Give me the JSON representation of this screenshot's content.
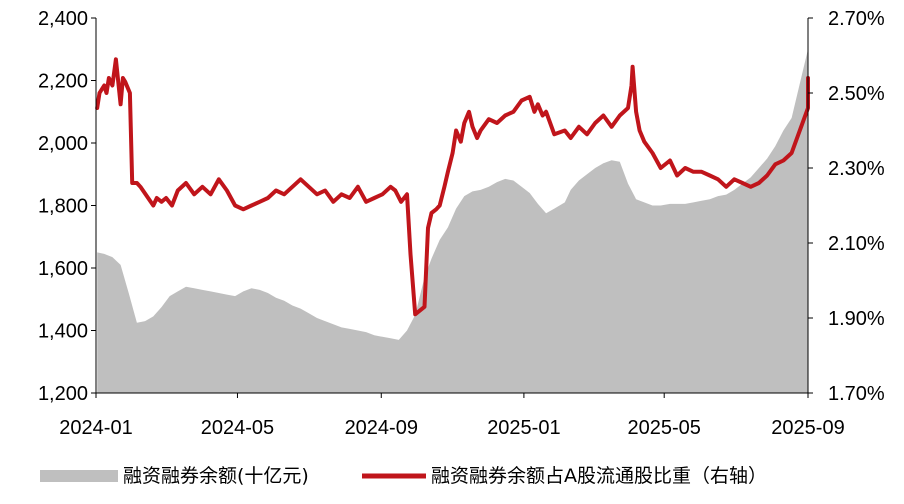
{
  "chart_data": {
    "type": "area",
    "title": "",
    "xlabel": "",
    "ylabel": "",
    "x_ticks": [
      "2024-01",
      "2024-05",
      "2024-09",
      "2025-01",
      "2025-05",
      "2025-09"
    ],
    "x_range": [
      "2024-01",
      "2025-09"
    ],
    "y_left": {
      "range": [
        1200,
        2400
      ],
      "ticks": [
        "1,200",
        "1,400",
        "1,600",
        "1,800",
        "2,000",
        "2,200",
        "2,400"
      ]
    },
    "y_right": {
      "range": [
        1.7,
        2.7
      ],
      "ticks": [
        "1.70%",
        "1.90%",
        "2.10%",
        "2.30%",
        "2.50%",
        "2.70%"
      ]
    },
    "grid": false,
    "legend_position": "bottom",
    "series": [
      {
        "name": "融资融券余额(十亿元)",
        "type": "area",
        "axis": "left",
        "color": "#bfbfbf",
        "dates": [
          "2024-01-02",
          "2024-01-08",
          "2024-01-15",
          "2024-01-22",
          "2024-01-29",
          "2024-02-05",
          "2024-02-12",
          "2024-02-19",
          "2024-02-26",
          "2024-03-04",
          "2024-03-11",
          "2024-03-18",
          "2024-03-25",
          "2024-04-01",
          "2024-04-08",
          "2024-04-15",
          "2024-04-22",
          "2024-04-29",
          "2024-05-06",
          "2024-05-13",
          "2024-05-20",
          "2024-05-27",
          "2024-06-03",
          "2024-06-10",
          "2024-06-17",
          "2024-06-24",
          "2024-07-01",
          "2024-07-08",
          "2024-07-15",
          "2024-07-22",
          "2024-07-29",
          "2024-08-05",
          "2024-08-12",
          "2024-08-19",
          "2024-08-26",
          "2024-09-02",
          "2024-09-09",
          "2024-09-16",
          "2024-09-23",
          "2024-09-30",
          "2024-10-08",
          "2024-10-14",
          "2024-10-21",
          "2024-10-28",
          "2024-11-04",
          "2024-11-11",
          "2024-11-18",
          "2024-11-25",
          "2024-12-02",
          "2024-12-09",
          "2024-12-16",
          "2024-12-23",
          "2024-12-30",
          "2025-01-06",
          "2025-01-13",
          "2025-01-20",
          "2025-01-27",
          "2025-02-05",
          "2025-02-10",
          "2025-02-17",
          "2025-02-24",
          "2025-03-03",
          "2025-03-10",
          "2025-03-17",
          "2025-03-24",
          "2025-03-31",
          "2025-04-07",
          "2025-04-14",
          "2025-04-21",
          "2025-04-28",
          "2025-05-06",
          "2025-05-12",
          "2025-05-19",
          "2025-05-26",
          "2025-06-02",
          "2025-06-09",
          "2025-06-16",
          "2025-06-23",
          "2025-06-30",
          "2025-07-07",
          "2025-07-14",
          "2025-07-21",
          "2025-07-28",
          "2025-08-04",
          "2025-08-11",
          "2025-08-18",
          "2025-08-25",
          "2025-09-01",
          "2025-09-08",
          "2025-09-15"
        ],
        "values": [
          1650,
          1645,
          1635,
          1610,
          1520,
          1425,
          1430,
          1445,
          1475,
          1510,
          1525,
          1540,
          1535,
          1530,
          1525,
          1520,
          1515,
          1510,
          1525,
          1535,
          1530,
          1520,
          1505,
          1495,
          1480,
          1470,
          1455,
          1440,
          1430,
          1420,
          1410,
          1405,
          1400,
          1395,
          1385,
          1380,
          1375,
          1370,
          1400,
          1450,
          1570,
          1630,
          1690,
          1730,
          1790,
          1830,
          1845,
          1850,
          1860,
          1875,
          1885,
          1880,
          1860,
          1840,
          1805,
          1775,
          1790,
          1810,
          1850,
          1880,
          1900,
          1920,
          1935,
          1945,
          1940,
          1870,
          1820,
          1810,
          1800,
          1800,
          1805,
          1805,
          1805,
          1810,
          1815,
          1820,
          1830,
          1835,
          1850,
          1870,
          1890,
          1920,
          1950,
          1990,
          2040,
          2080,
          2190,
          2300,
          2360,
          2400
        ]
      },
      {
        "name": "融资融券余额占A股流通股比重（右轴）",
        "type": "line",
        "axis": "right",
        "color": "#c0151b",
        "dates": [
          "2024-01-02",
          "2024-01-04",
          "2024-01-08",
          "2024-01-10",
          "2024-01-12",
          "2024-01-15",
          "2024-01-18",
          "2024-01-22",
          "2024-01-24",
          "2024-01-26",
          "2024-01-30",
          "2024-02-01",
          "2024-02-05",
          "2024-02-08",
          "2024-02-19",
          "2024-02-22",
          "2024-02-26",
          "2024-03-01",
          "2024-03-06",
          "2024-03-11",
          "2024-03-18",
          "2024-03-25",
          "2024-04-01",
          "2024-04-08",
          "2024-04-15",
          "2024-04-22",
          "2024-04-29",
          "2024-05-06",
          "2024-05-13",
          "2024-05-20",
          "2024-05-27",
          "2024-06-03",
          "2024-06-10",
          "2024-06-17",
          "2024-06-24",
          "2024-07-01",
          "2024-07-08",
          "2024-07-15",
          "2024-07-22",
          "2024-07-29",
          "2024-08-05",
          "2024-08-12",
          "2024-08-19",
          "2024-08-26",
          "2024-09-02",
          "2024-09-09",
          "2024-09-13",
          "2024-09-18",
          "2024-09-23",
          "2024-09-26",
          "2024-09-30",
          "2024-10-08",
          "2024-10-11",
          "2024-10-14",
          "2024-10-18",
          "2024-10-21",
          "2024-10-25",
          "2024-10-28",
          "2024-11-01",
          "2024-11-04",
          "2024-11-08",
          "2024-11-11",
          "2024-11-15",
          "2024-11-18",
          "2024-11-22",
          "2024-11-25",
          "2024-12-02",
          "2024-12-09",
          "2024-12-16",
          "2024-12-23",
          "2024-12-30",
          "2025-01-06",
          "2025-01-10",
          "2025-01-13",
          "2025-01-17",
          "2025-01-20",
          "2025-01-27",
          "2025-02-05",
          "2025-02-10",
          "2025-02-17",
          "2025-02-24",
          "2025-03-03",
          "2025-03-10",
          "2025-03-17",
          "2025-03-24",
          "2025-03-31",
          "2025-04-03",
          "2025-04-04",
          "2025-04-07",
          "2025-04-10",
          "2025-04-14",
          "2025-04-21",
          "2025-04-28",
          "2025-05-06",
          "2025-05-12",
          "2025-05-19",
          "2025-05-26",
          "2025-06-02",
          "2025-06-09",
          "2025-06-16",
          "2025-06-23",
          "2025-06-30",
          "2025-07-07",
          "2025-07-14",
          "2025-07-21",
          "2025-07-28",
          "2025-08-04",
          "2025-08-11",
          "2025-08-18",
          "2025-08-25",
          "2025-09-01",
          "2025-09-05",
          "2025-09-10",
          "2025-09-15"
        ],
        "values": [
          2.46,
          2.5,
          2.52,
          2.5,
          2.54,
          2.52,
          2.59,
          2.47,
          2.54,
          2.53,
          2.5,
          2.26,
          2.26,
          2.25,
          2.2,
          2.22,
          2.21,
          2.22,
          2.2,
          2.24,
          2.26,
          2.23,
          2.25,
          2.23,
          2.27,
          2.24,
          2.2,
          2.19,
          2.2,
          2.21,
          2.22,
          2.24,
          2.23,
          2.25,
          2.27,
          2.25,
          2.23,
          2.24,
          2.21,
          2.23,
          2.22,
          2.25,
          2.21,
          2.22,
          2.23,
          2.25,
          2.24,
          2.21,
          2.23,
          2.07,
          1.91,
          1.93,
          2.14,
          2.18,
          2.19,
          2.2,
          2.25,
          2.29,
          2.34,
          2.4,
          2.37,
          2.42,
          2.45,
          2.41,
          2.38,
          2.4,
          2.43,
          2.42,
          2.44,
          2.45,
          2.48,
          2.49,
          2.45,
          2.47,
          2.44,
          2.45,
          2.39,
          2.4,
          2.38,
          2.41,
          2.39,
          2.42,
          2.44,
          2.41,
          2.44,
          2.46,
          2.52,
          2.57,
          2.45,
          2.4,
          2.37,
          2.34,
          2.3,
          2.32,
          2.28,
          2.3,
          2.29,
          2.29,
          2.28,
          2.27,
          2.25,
          2.27,
          2.26,
          2.25,
          2.26,
          2.28,
          2.31,
          2.32,
          2.34,
          2.4,
          2.46,
          2.48,
          2.5,
          2.54
        ]
      }
    ]
  }
}
